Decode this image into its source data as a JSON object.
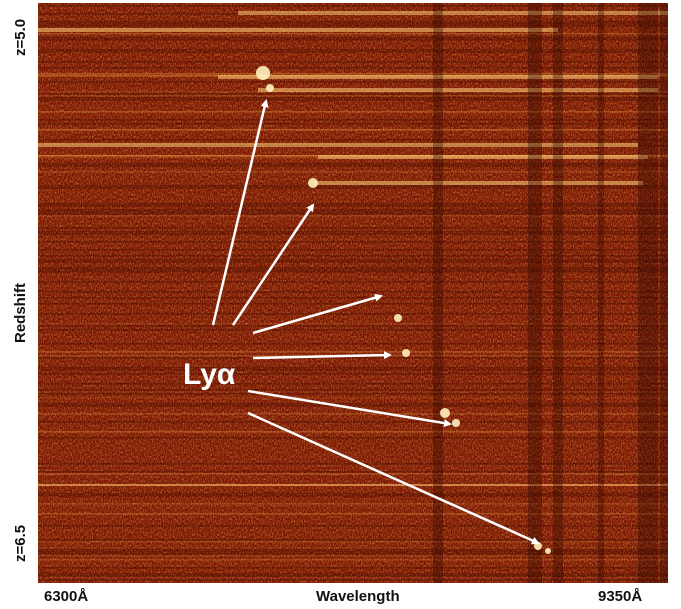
{
  "y_axis": {
    "top_label": "z=5.0",
    "title": "Redshift",
    "bottom_label": "z=6.5"
  },
  "x_axis": {
    "left_label": "6300Å",
    "title": "Wavelength",
    "right_label": "9350Å"
  },
  "annotation": {
    "line_label": "Lyα"
  },
  "colors": {
    "background": "#7a1500",
    "dark": "#4a0a00",
    "bright": "#ffd27a",
    "arrow": "#ffffff"
  }
}
